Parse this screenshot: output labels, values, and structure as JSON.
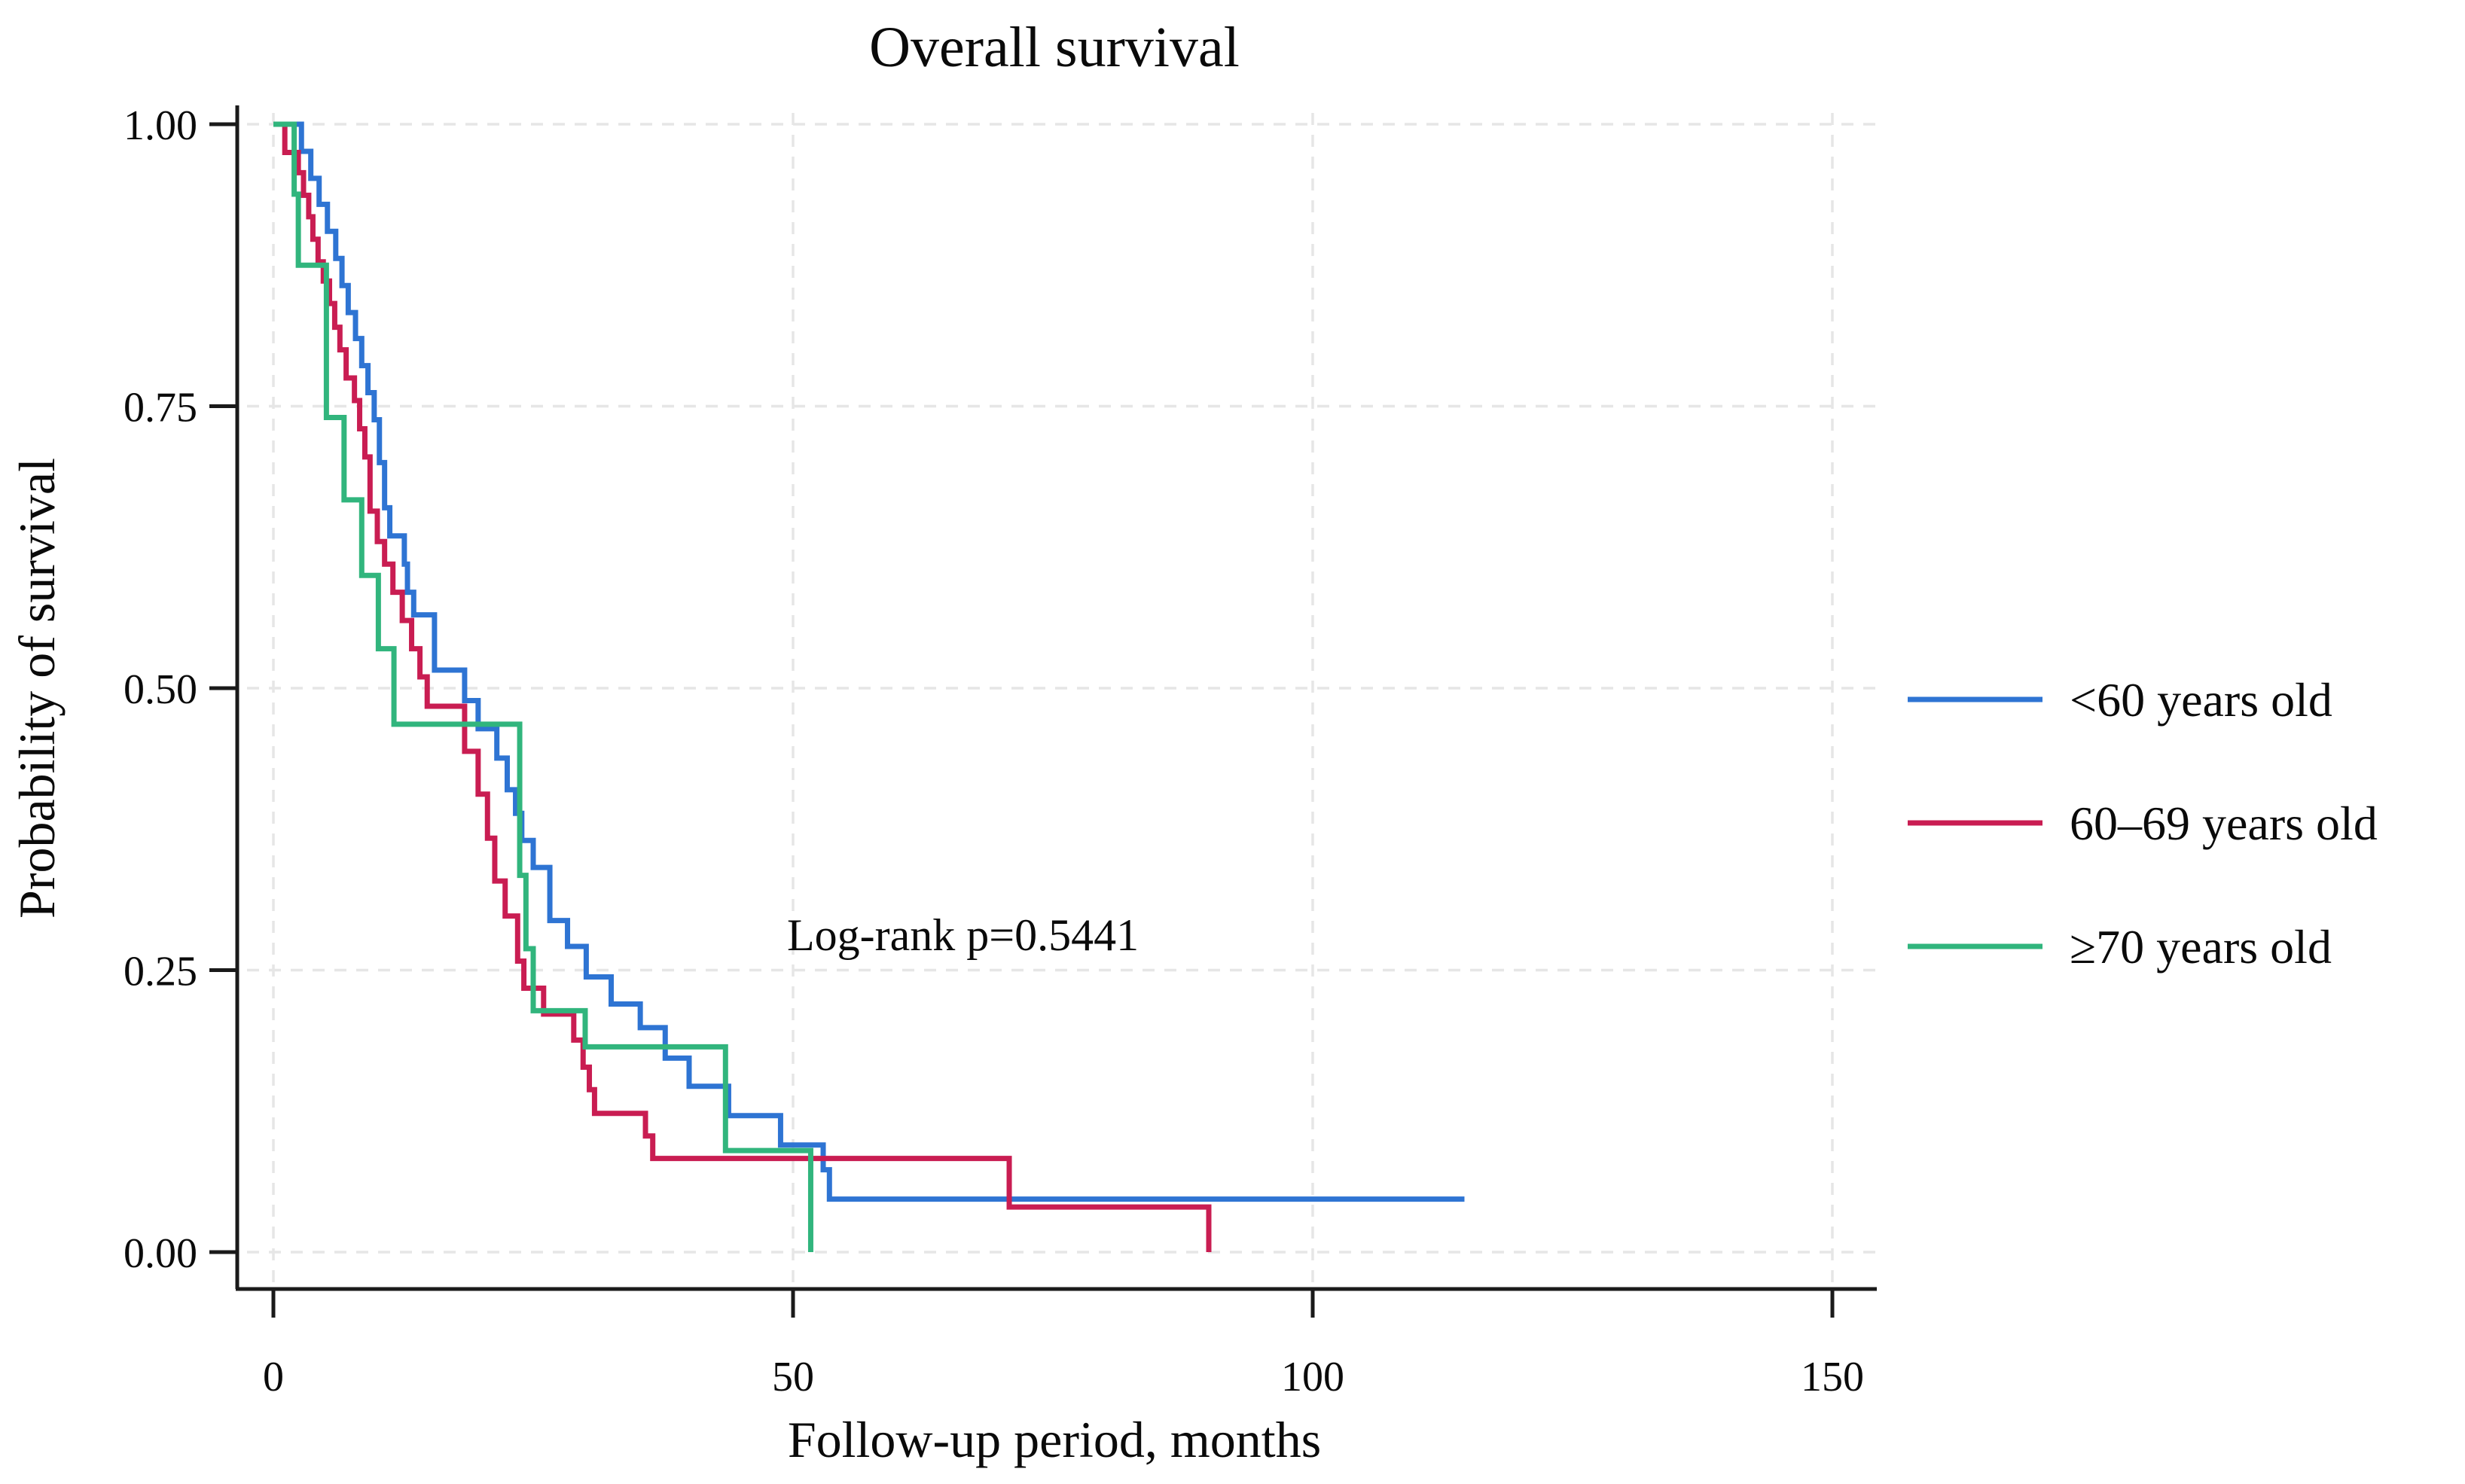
{
  "title": "Overall survival",
  "x_axis": {
    "label": "Follow-up period, months",
    "ticks": [
      0,
      50,
      100,
      150
    ],
    "range": [
      0,
      154
    ]
  },
  "y_axis": {
    "label": "Probability of survival",
    "ticks": [
      {
        "value": 1.0,
        "label": "1.00"
      },
      {
        "value": 0.75,
        "label": "0.75"
      },
      {
        "value": 0.5,
        "label": "0.50"
      },
      {
        "value": 0.25,
        "label": "0.25"
      },
      {
        "value": 0.0,
        "label": "0.00"
      }
    ],
    "range": [
      0,
      1
    ]
  },
  "annotation": {
    "text": "Log-rank p=0.5441"
  },
  "legend": {
    "position": "right-outside",
    "items": [
      {
        "label": "<60 years old",
        "color": "#2E74D3"
      },
      {
        "label": "60–69 years old",
        "color": "#C91D52"
      },
      {
        "label": "≥70 years old",
        "color": "#31B57D"
      }
    ]
  },
  "colors": {
    "grid": "#e6e6e6",
    "axis": "#1a1a1a",
    "background": "#ffffff"
  },
  "chart_data": {
    "type": "line",
    "subtype": "kaplan-meier-step",
    "title": "Overall survival",
    "xlabel": "Follow-up period, months",
    "ylabel": "Probability of survival",
    "xlim": [
      0,
      154
    ],
    "ylim": [
      0,
      1
    ],
    "grid": "dashed horizontal and vertical at ticks",
    "legend_position": "right-outside",
    "annotation": "Log-rank p=0.5441",
    "series": [
      {
        "name": "<60 years old",
        "color": "#2E74D3",
        "terminal_drop_to_zero": false,
        "end_time": 114.6,
        "points": [
          [
            0,
            1.0
          ],
          [
            2.7,
            0.976
          ],
          [
            3.6,
            0.952
          ],
          [
            4.4,
            0.929
          ],
          [
            5.2,
            0.905
          ],
          [
            6.0,
            0.881
          ],
          [
            6.6,
            0.857
          ],
          [
            7.2,
            0.833
          ],
          [
            7.9,
            0.81
          ],
          [
            8.5,
            0.786
          ],
          [
            9.1,
            0.762
          ],
          [
            9.7,
            0.738
          ],
          [
            10.2,
            0.7
          ],
          [
            10.7,
            0.66
          ],
          [
            11.2,
            0.635
          ],
          [
            12.6,
            0.61
          ],
          [
            12.9,
            0.585
          ],
          [
            13.5,
            0.565
          ],
          [
            15.5,
            0.516
          ],
          [
            18.4,
            0.489
          ],
          [
            19.7,
            0.464
          ],
          [
            21.5,
            0.438
          ],
          [
            22.5,
            0.41
          ],
          [
            23.3,
            0.389
          ],
          [
            23.9,
            0.365
          ],
          [
            25.0,
            0.341
          ],
          [
            26.6,
            0.294
          ],
          [
            28.3,
            0.271
          ],
          [
            30.1,
            0.244
          ],
          [
            32.5,
            0.22
          ],
          [
            35.3,
            0.199
          ],
          [
            37.7,
            0.172
          ],
          [
            40.0,
            0.147
          ],
          [
            43.8,
            0.121
          ],
          [
            48.8,
            0.095
          ],
          [
            52.9,
            0.073
          ],
          [
            53.5,
            0.047
          ]
        ]
      },
      {
        "name": "60–69 years old",
        "color": "#C91D52",
        "terminal_drop_to_zero": true,
        "end_time": 90,
        "points": [
          [
            0,
            1.0
          ],
          [
            1.1,
            0.975
          ],
          [
            2.4,
            0.957
          ],
          [
            2.9,
            0.937
          ],
          [
            3.4,
            0.918
          ],
          [
            3.8,
            0.898
          ],
          [
            4.3,
            0.878
          ],
          [
            4.8,
            0.861
          ],
          [
            5.4,
            0.841
          ],
          [
            5.9,
            0.82
          ],
          [
            6.4,
            0.8
          ],
          [
            7.0,
            0.775
          ],
          [
            7.8,
            0.755
          ],
          [
            8.3,
            0.73
          ],
          [
            8.8,
            0.705
          ],
          [
            9.3,
            0.657
          ],
          [
            10.0,
            0.63
          ],
          [
            10.7,
            0.61
          ],
          [
            11.5,
            0.585
          ],
          [
            12.4,
            0.56
          ],
          [
            13.3,
            0.535
          ],
          [
            14.1,
            0.51
          ],
          [
            14.8,
            0.484
          ],
          [
            18.4,
            0.444
          ],
          [
            19.7,
            0.406
          ],
          [
            20.6,
            0.367
          ],
          [
            21.3,
            0.329
          ],
          [
            22.3,
            0.298
          ],
          [
            23.5,
            0.258
          ],
          [
            24.1,
            0.234
          ],
          [
            26.0,
            0.211
          ],
          [
            28.9,
            0.188
          ],
          [
            29.8,
            0.164
          ],
          [
            30.4,
            0.144
          ],
          [
            30.9,
            0.123
          ],
          [
            35.8,
            0.103
          ],
          [
            36.5,
            0.083
          ],
          [
            70.8,
            0.04
          ],
          [
            90,
            0.0
          ]
        ]
      },
      {
        "name": "≥70 years old",
        "color": "#31B57D",
        "terminal_drop_to_zero": true,
        "end_time": 51.7,
        "points": [
          [
            0,
            1.0
          ],
          [
            2.0,
            0.938
          ],
          [
            2.4,
            0.875
          ],
          [
            5.1,
            0.74
          ],
          [
            6.8,
            0.667
          ],
          [
            8.5,
            0.6
          ],
          [
            10.1,
            0.535
          ],
          [
            11.6,
            0.468
          ],
          [
            23.7,
            0.334
          ],
          [
            24.3,
            0.269
          ],
          [
            25.0,
            0.214
          ],
          [
            30.0,
            0.182
          ],
          [
            43.5,
            0.09
          ],
          [
            51.7,
            0.0
          ]
        ]
      }
    ]
  }
}
